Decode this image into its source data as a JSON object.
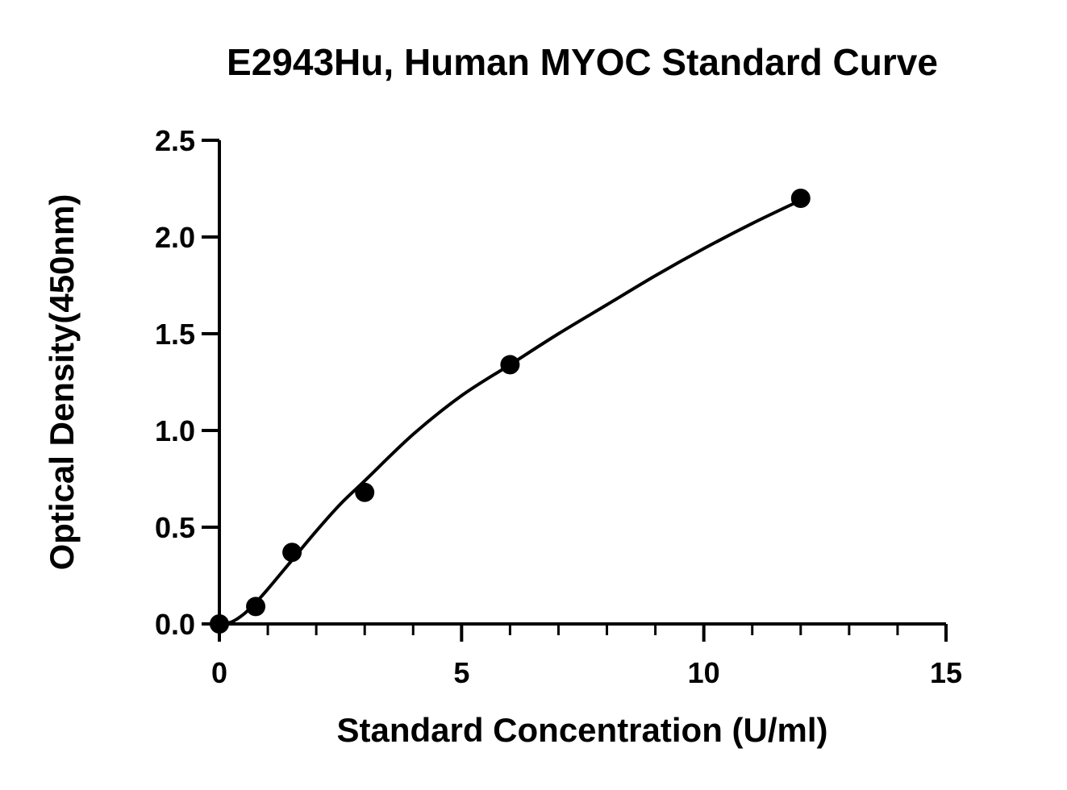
{
  "chart_data": {
    "type": "scatter",
    "title": "E2943Hu, Human MYOC Standard Curve",
    "xlabel": "Standard Concentration (U/ml)",
    "ylabel": "Optical Density(450nm)",
    "xlim": [
      0,
      15
    ],
    "ylim": [
      0,
      2.5
    ],
    "x_ticks": [
      "0",
      "5",
      "10",
      "15"
    ],
    "y_ticks": [
      "0.0",
      "0.5",
      "1.0",
      "1.5",
      "2.0",
      "2.5"
    ],
    "x_minor_step": 1,
    "grid": false,
    "legend": "none",
    "series": [
      {
        "type": "scatter",
        "x": [
          0,
          0.75,
          1.5,
          3,
          6,
          12
        ],
        "y": [
          0.0,
          0.09,
          0.37,
          0.68,
          1.34,
          2.2
        ]
      }
    ],
    "fit_curve": {
      "type": "line",
      "x": [
        0,
        0.25,
        0.5,
        0.75,
        1.0,
        1.5,
        2.0,
        2.5,
        3.0,
        4.0,
        5.0,
        6.0,
        7.0,
        8.0,
        9.0,
        10.0,
        11.0,
        12.0
      ],
      "y": [
        0.0,
        0.01,
        0.05,
        0.11,
        0.18,
        0.33,
        0.48,
        0.62,
        0.74,
        0.98,
        1.18,
        1.34,
        1.5,
        1.65,
        1.8,
        1.94,
        2.07,
        2.19
      ]
    },
    "colors": {
      "points": "#000000",
      "line": "#000000",
      "axis": "#000000"
    }
  }
}
